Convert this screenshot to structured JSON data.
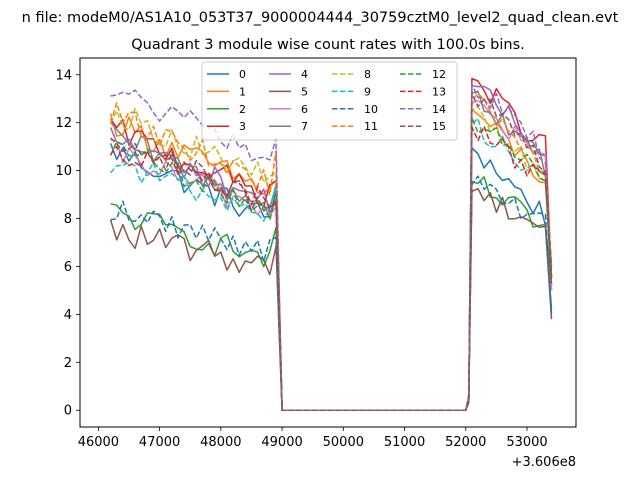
{
  "figure": {
    "suptitle": "n file: modeM0/AS1A10_053T37_9000004444_30759cztM0_level2_quad_clean.evt",
    "offset_text": "+3.606e8"
  },
  "chart_data": {
    "type": "line",
    "title": "Quadrant 3 module wise count rates with 100.0s bins.",
    "xlabel": "",
    "ylabel": "",
    "xlim": [
      45700,
      53800
    ],
    "ylim": [
      -0.7,
      14.7
    ],
    "x_ticks": [
      46000,
      47000,
      48000,
      49000,
      50000,
      51000,
      52000,
      53000
    ],
    "y_ticks": [
      0,
      2,
      4,
      6,
      8,
      10,
      12,
      14
    ],
    "x_tick_labels": [
      "46000",
      "47000",
      "48000",
      "49000",
      "50000",
      "51000",
      "52000",
      "53000"
    ],
    "y_tick_labels": [
      "0",
      "2",
      "4",
      "6",
      "8",
      "10",
      "12",
      "14"
    ],
    "grid": false,
    "legend": {
      "position": "top-center",
      "columns": 4
    },
    "segments": [
      {
        "x_start": 46200,
        "x_end": 48900,
        "step": 100,
        "gap_after": true
      },
      {
        "x_start": 52100,
        "x_end": 53400,
        "step": 100
      }
    ],
    "gap": {
      "x": [
        49000,
        52000
      ],
      "value": 0
    },
    "series": [
      {
        "name": "0",
        "color": "#1f77b4",
        "dash": "solid",
        "level1": 10.9,
        "level2": 11.0,
        "drop": 3.0,
        "end": 4.2
      },
      {
        "name": "1",
        "color": "#ff7f0e",
        "dash": "solid",
        "level1": 12.1,
        "level2": 12.6,
        "drop": 3.1,
        "end": 6.0
      },
      {
        "name": "2",
        "color": "#2ca02c",
        "dash": "solid",
        "level1": 8.3,
        "level2": 9.6,
        "drop": 2.1,
        "end": 5.2
      },
      {
        "name": "3",
        "color": "#d62728",
        "dash": "solid",
        "level1": 11.8,
        "level2": 13.9,
        "drop": 3.0,
        "end": 5.5
      },
      {
        "name": "4",
        "color": "#9467bd",
        "dash": "solid",
        "level1": 11.4,
        "level2": 13.6,
        "drop": 2.8,
        "end": 5.0
      },
      {
        "name": "5",
        "color": "#8c564b",
        "dash": "solid",
        "level1": 7.5,
        "level2": 9.2,
        "drop": 1.6,
        "end": 3.8
      },
      {
        "name": "6",
        "color": "#e377c2",
        "dash": "solid",
        "level1": 10.8,
        "level2": 12.9,
        "drop": 2.6,
        "end": 5.0
      },
      {
        "name": "7",
        "color": "#7f7f7f",
        "dash": "solid",
        "level1": 11.5,
        "level2": 13.3,
        "drop": 3.2,
        "end": 5.5
      },
      {
        "name": "8",
        "color": "#bcbd22",
        "dash": "dashed",
        "level1": 12.5,
        "level2": 12.6,
        "drop": 3.0,
        "end": 6.2
      },
      {
        "name": "9",
        "color": "#17becf",
        "dash": "dashed",
        "level1": 10.4,
        "level2": 12.0,
        "drop": 2.3,
        "end": 5.2
      },
      {
        "name": "10",
        "color": "#1f77b4",
        "dash": "dashed",
        "level1": 8.4,
        "level2": 9.5,
        "drop": 1.8,
        "end": 4.0
      },
      {
        "name": "11",
        "color": "#ff7f0e",
        "dash": "dashed",
        "level1": 12.4,
        "level2": 13.0,
        "drop": 3.0,
        "end": 5.8
      },
      {
        "name": "12",
        "color": "#2ca02c",
        "dash": "dashed",
        "level1": 11.0,
        "level2": 12.3,
        "drop": 2.8,
        "end": 5.2
      },
      {
        "name": "13",
        "color": "#d62728",
        "dash": "dashed",
        "level1": 11.0,
        "level2": 11.9,
        "drop": 2.4,
        "end": 5.3
      },
      {
        "name": "14",
        "color": "#9467bd",
        "dash": "dashed",
        "level1": 13.4,
        "level2": 13.7,
        "drop": 3.0,
        "end": 6.0
      },
      {
        "name": "15",
        "color": "#8c564b",
        "dash": "dashed",
        "level1": 11.6,
        "level2": 13.3,
        "drop": 3.3,
        "end": 5.6
      }
    ]
  }
}
